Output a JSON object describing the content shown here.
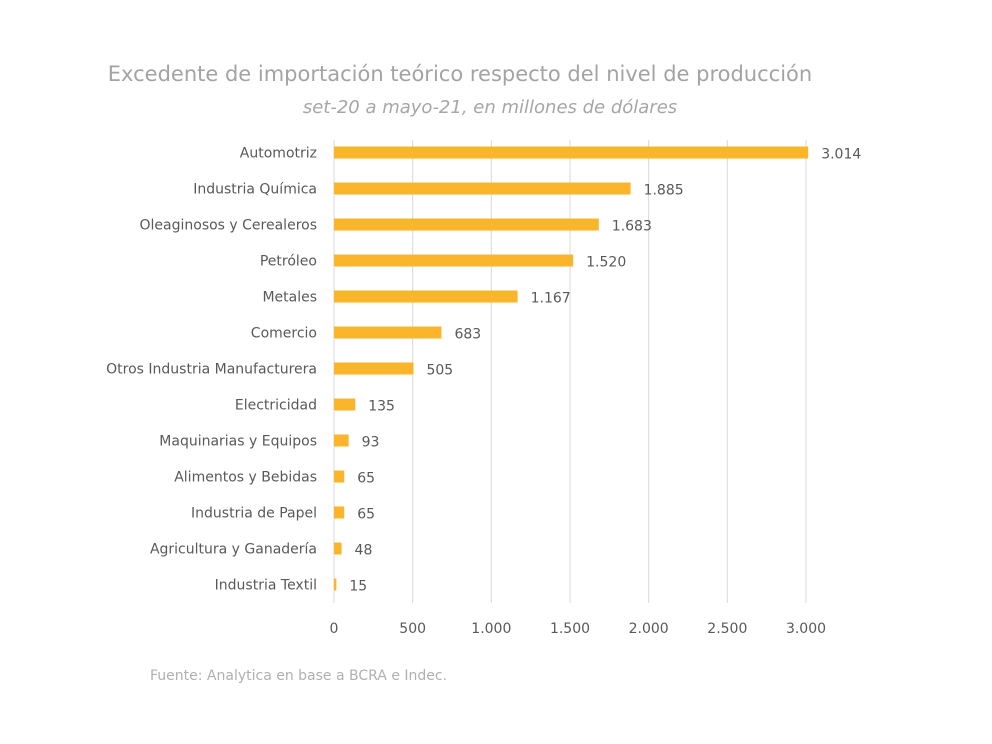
{
  "title": "Excedente de importación teórico respecto del nivel de producción",
  "subtitle": "set-20 a mayo-21, en millones de dólares",
  "source": "Fuente: Analytica en base a BCRA e Indec.",
  "colors": {
    "bar": "#fbb52a",
    "grid": "#d9d9d9",
    "text": "#595959",
    "title": "#a3a3a3"
  },
  "chart_data": {
    "type": "bar",
    "orientation": "horizontal",
    "title": "Excedente de importación teórico respecto del nivel de producción",
    "subtitle": "set-20 a mayo-21, en millones de dólares",
    "xlabel": "",
    "ylabel": "",
    "xlim": [
      0,
      3000
    ],
    "xticks": [
      0,
      500,
      1000,
      1500,
      2000,
      2500,
      3000
    ],
    "xtick_labels": [
      "0",
      "500",
      "1.000",
      "1.500",
      "2.000",
      "2.500",
      "3.000"
    ],
    "grid": true,
    "legend": "none",
    "categories": [
      "Automotriz",
      "Industria Química",
      "Oleaginosos y Cerealeros",
      "Petróleo",
      "Metales",
      "Comercio",
      "Otros Industria Manufacturera",
      "Electricidad",
      "Maquinarias y Equipos",
      "Alimentos y Bebidas",
      "Industria de Papel",
      "Agricultura y Ganadería",
      "Industria Textil"
    ],
    "values": [
      3014,
      1885,
      1683,
      1520,
      1167,
      683,
      505,
      135,
      93,
      65,
      65,
      48,
      15
    ],
    "value_labels": [
      "3.014",
      "1.885",
      "1.683",
      "1.520",
      "1.167",
      "683",
      "505",
      "135",
      "93",
      "65",
      "65",
      "48",
      "15"
    ]
  }
}
